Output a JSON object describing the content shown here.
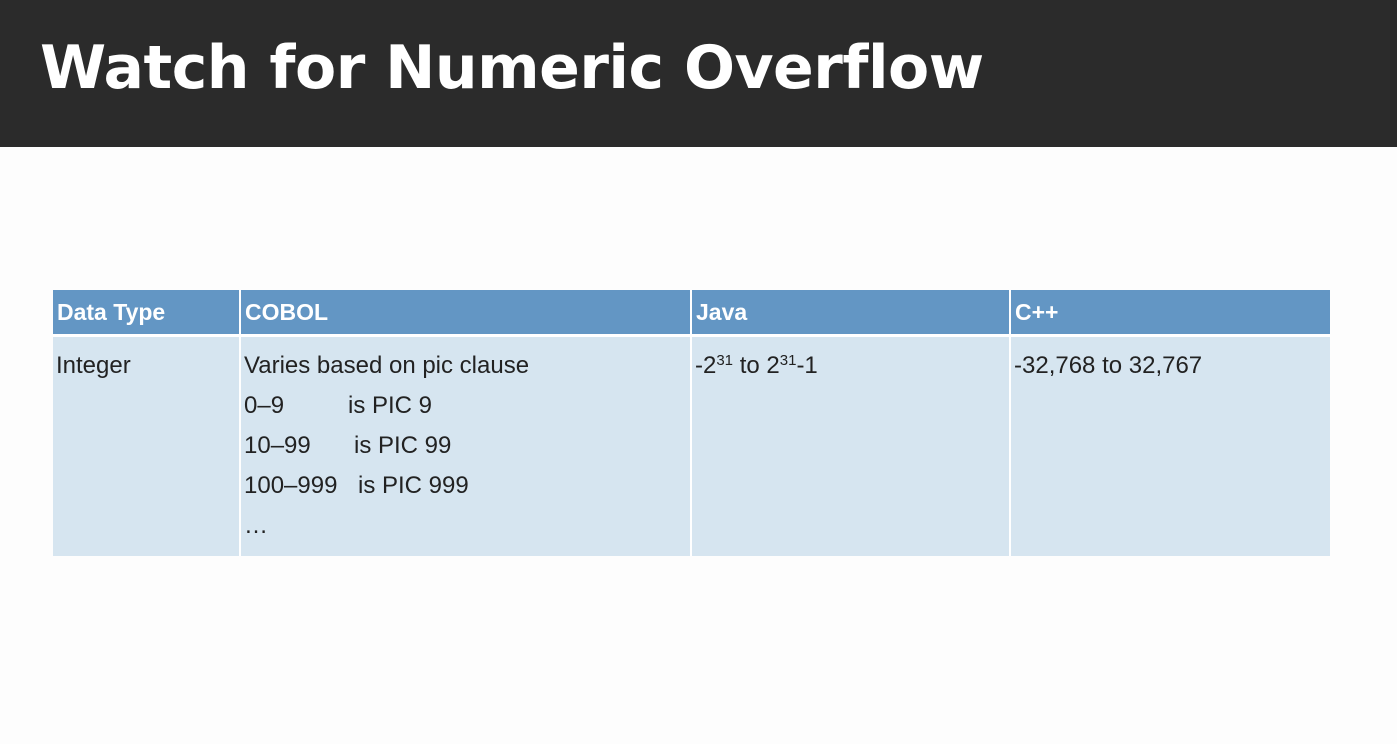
{
  "slide": {
    "title": "Watch for Numeric Overflow"
  },
  "table": {
    "headers": [
      "Data Type",
      "COBOL",
      "Java",
      "C++"
    ],
    "row": {
      "data_type": "Integer",
      "cobol": {
        "intro": "Varies based on pic clause",
        "mappings": [
          {
            "range": "0–9",
            "pic": "is PIC 9"
          },
          {
            "range": "10–99",
            "pic": "is PIC 99"
          },
          {
            "range": "100–999",
            "pic": "is PIC 999"
          }
        ],
        "ellipsis": "…"
      },
      "java": {
        "min_prefix": "-2",
        "min_exponent": "31",
        "connector": "to",
        "max_base": "2",
        "max_exponent": "31",
        "max_suffix": "-1"
      },
      "cpp": "-32,768 to 32,767"
    }
  },
  "colors": {
    "title_bar": "#2b2b2b",
    "header_bg": "#6396c4",
    "cell_bg": "#d6e5f0",
    "page_bg": "#fdfdfd"
  }
}
